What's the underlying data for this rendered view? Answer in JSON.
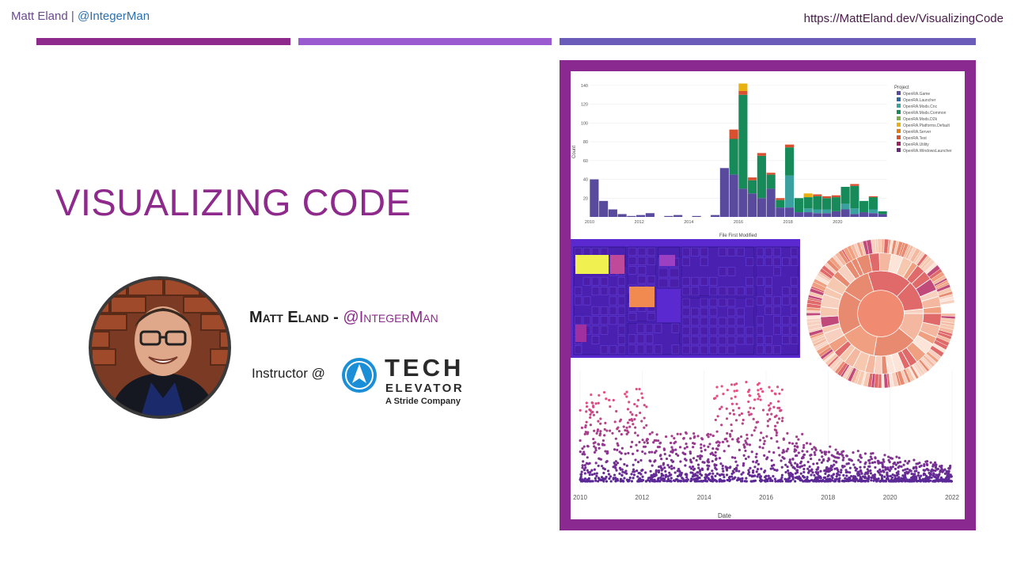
{
  "header": {
    "author": "Matt Eland",
    "separator": "|",
    "handle": "@IntegerMan",
    "url": "https://MattEland.dev/VisualizingCode"
  },
  "slide": {
    "title": "VISUALIZING CODE",
    "presenter_name": "Matt Eland -",
    "presenter_handle": "@IntegerMan",
    "instructor_label": "Instructor @",
    "logo_line1": "TECH",
    "logo_line2": "ELEVATOR",
    "logo_line3": "A Stride Company"
  },
  "colors": {
    "accent": "#8e2a8c",
    "frame": "#8a2a90",
    "bar2": "#9a5ad0",
    "bar3": "#6a5cb8",
    "logo_blue": "#1a8fd8"
  },
  "chart_data": [
    {
      "type": "bar",
      "title": "",
      "xlabel": "File First Modified",
      "ylabel": "Count",
      "legend_title": "Project",
      "legend_position": "top-right",
      "ylim": [
        0,
        150
      ],
      "yticks": [
        20,
        40,
        60,
        80,
        100,
        120,
        140
      ],
      "xticks": [
        "2010",
        "2012",
        "2014",
        "2016",
        "2018",
        "2020"
      ],
      "series_names": [
        "OpenRA.Game",
        "OpenRA.Launcher",
        "OpenRA.Mods.Cnc",
        "OpenRA.Mods.Common",
        "OpenRA.Mods.D2k",
        "OpenRA.Platforms.Default",
        "OpenRA.Server",
        "OpenRA.Test",
        "OpenRA.Utility",
        "OpenRA.WindowsLauncher"
      ],
      "series_colors": [
        "#5a4a9e",
        "#2a6a9e",
        "#3aa0a0",
        "#168a58",
        "#7ab04a",
        "#e8b010",
        "#e87a10",
        "#d85030",
        "#a02060",
        "#6a2a7a"
      ],
      "stacks": [
        [
          40
        ],
        [
          0
        ],
        [
          20
        ],
        [
          8
        ],
        [
          3
        ],
        [
          2
        ],
        [
          3
        ],
        [
          0
        ],
        [
          0
        ],
        [
          2
        ],
        [
          0
        ],
        [
          2
        ],
        [
          0
        ],
        [
          0
        ],
        [
          52,
          0
        ],
        [
          0,
          0
        ],
        [
          0
        ],
        [
          0
        ],
        [
          0
        ],
        [
          0
        ]
      ]
    },
    {
      "type": "scatter",
      "xlabel": "Date",
      "xticks": [
        "2010",
        "2012",
        "2014",
        "2016",
        "2018",
        "2020",
        "2022"
      ]
    }
  ]
}
